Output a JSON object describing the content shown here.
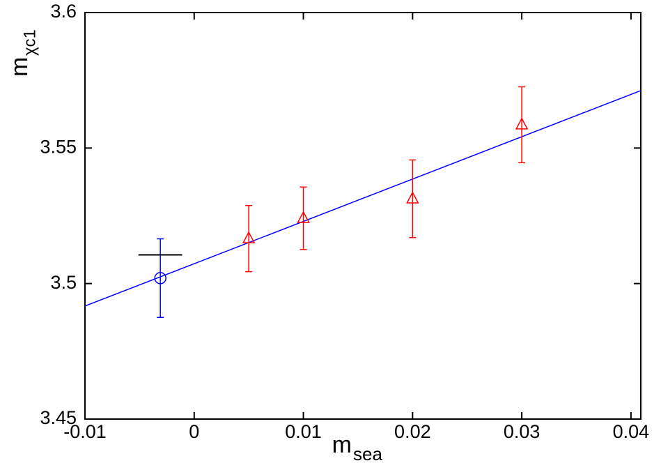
{
  "chart_data": {
    "type": "scatter",
    "xlabel": "m",
    "xlabel_sub": "sea",
    "ylabel": "m",
    "ylabel_sub": "χc1",
    "xlim": [
      -0.01,
      0.0409
    ],
    "ylim": [
      3.45,
      3.6
    ],
    "xticks": [
      -0.01,
      0,
      0.01,
      0.02,
      0.03,
      0.04
    ],
    "yticks": [
      3.45,
      3.5,
      3.55,
      3.6
    ],
    "grid": false,
    "series": [
      {
        "color": "#ff0000",
        "marker": "triangle",
        "x": [
          0.005,
          0.01,
          0.02,
          0.03
        ],
        "values": [
          3.5166,
          3.5241,
          3.5313,
          3.5586
        ],
        "errors": [
          0.0122,
          0.0115,
          0.0143,
          0.014
        ]
      },
      {
        "color": "#0000ff",
        "marker": "circle",
        "x": [
          -0.0031
        ],
        "values": [
          3.502
        ],
        "errors": [
          0.0145
        ]
      },
      {
        "color": "#000000",
        "marker": "none",
        "x": [
          -0.0031
        ],
        "values": [
          3.5106
        ],
        "xerrors": [
          0.002
        ]
      }
    ],
    "fit_line": {
      "color": "#0000ff",
      "x": [
        -0.01,
        0.0409
      ],
      "values": [
        3.4917,
        3.5712
      ]
    }
  }
}
